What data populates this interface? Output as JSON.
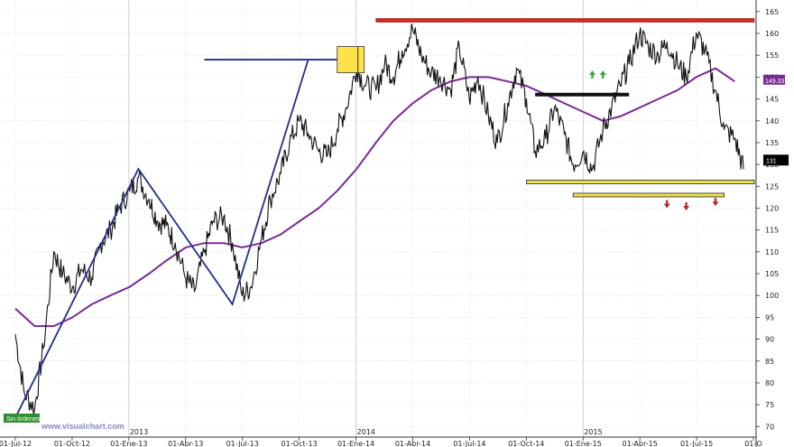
{
  "chart_data": {
    "type": "line",
    "title": "",
    "xlabel": "",
    "ylabel": "",
    "ylim": [
      68,
      166
    ],
    "y_ticks": [
      70,
      75,
      80,
      85,
      90,
      95,
      100,
      105,
      110,
      115,
      120,
      125,
      130,
      135,
      140,
      145,
      150,
      155,
      160,
      165
    ],
    "x_ticks": [
      "01-Jul-12",
      "01-Oct-12",
      "01-Ene-13",
      "01-Abr-13",
      "01-Jul-13",
      "01-Oct-13",
      "01-Ene-14",
      "01-Abr-14",
      "01-Jul-14",
      "01-Oct-14",
      "01-Ene-15",
      "01-Abr-15",
      "01-Jul-15",
      "01-O"
    ],
    "year_labels": [
      "2013",
      "2014",
      "2015"
    ],
    "grid": true,
    "colors": {
      "price": "#111111",
      "moving_average": "#7a2a96",
      "trendlines": "#1f2f8a",
      "resistance": "#d42a1e",
      "support_fill": "#f0e050",
      "signal_up": "#3aa83a",
      "signal_down": "#b03030"
    },
    "series": [
      {
        "role": "price",
        "x": [
          "2012-07-01",
          "2012-07-15",
          "2012-08-01",
          "2012-08-15",
          "2012-09-01",
          "2012-09-15",
          "2012-10-01",
          "2012-10-15",
          "2012-11-01",
          "2012-11-15",
          "2012-12-01",
          "2012-12-15",
          "2013-01-01",
          "2013-01-15",
          "2013-02-01",
          "2013-02-15",
          "2013-03-01",
          "2013-03-15",
          "2013-04-01",
          "2013-04-15",
          "2013-05-01",
          "2013-05-15",
          "2013-06-01",
          "2013-06-15",
          "2013-07-01",
          "2013-07-15",
          "2013-08-01",
          "2013-08-15",
          "2013-09-01",
          "2013-09-15",
          "2013-10-01",
          "2013-10-15",
          "2013-11-01",
          "2013-11-15",
          "2013-12-01",
          "2013-12-15",
          "2014-01-01",
          "2014-01-15",
          "2014-02-01",
          "2014-02-15",
          "2014-03-01",
          "2014-03-15",
          "2014-04-01",
          "2014-04-15",
          "2014-05-01",
          "2014-05-15",
          "2014-06-01",
          "2014-06-15",
          "2014-07-01",
          "2014-07-15",
          "2014-08-01",
          "2014-08-15",
          "2014-09-01",
          "2014-09-15",
          "2014-10-01",
          "2014-10-15",
          "2014-11-01",
          "2014-11-15",
          "2014-12-01",
          "2014-12-15",
          "2015-01-01",
          "2015-01-15",
          "2015-02-01",
          "2015-02-15",
          "2015-03-01",
          "2015-03-15",
          "2015-04-01",
          "2015-04-15",
          "2015-05-01",
          "2015-05-15",
          "2015-06-01",
          "2015-06-15",
          "2015-07-01",
          "2015-07-15",
          "2015-08-01",
          "2015-08-15",
          "2015-09-01",
          "2015-09-15"
        ],
        "values": [
          91,
          78,
          74,
          88,
          110,
          105,
          102,
          106,
          104,
          112,
          115,
          120,
          124,
          127,
          122,
          117,
          116,
          112,
          104,
          101,
          110,
          117,
          118,
          112,
          100,
          102,
          113,
          122,
          128,
          135,
          140,
          137,
          133,
          132,
          138,
          143,
          152,
          148,
          147,
          153,
          150,
          156,
          161,
          155,
          151,
          150,
          147,
          157,
          145,
          150,
          141,
          135,
          144,
          152,
          145,
          133,
          136,
          143,
          137,
          130,
          133,
          129,
          138,
          143,
          148,
          153,
          160,
          157,
          155,
          158,
          153,
          150,
          160,
          156,
          147,
          138,
          136,
          129
        ]
      },
      {
        "role": "moving_average",
        "x": [
          "2012-07-01",
          "2012-08-01",
          "2012-09-01",
          "2012-10-01",
          "2012-11-01",
          "2012-12-01",
          "2013-01-01",
          "2013-02-01",
          "2013-03-01",
          "2013-04-01",
          "2013-05-01",
          "2013-06-01",
          "2013-07-01",
          "2013-08-01",
          "2013-09-01",
          "2013-10-01",
          "2013-11-01",
          "2013-12-01",
          "2014-01-01",
          "2014-02-01",
          "2014-03-01",
          "2014-04-01",
          "2014-05-01",
          "2014-06-01",
          "2014-07-01",
          "2014-08-01",
          "2014-09-01",
          "2014-10-01",
          "2014-11-01",
          "2014-12-01",
          "2015-01-01",
          "2015-02-01",
          "2015-03-01",
          "2015-04-01",
          "2015-05-01",
          "2015-06-01",
          "2015-07-01",
          "2015-08-01",
          "2015-09-01"
        ],
        "values": [
          97,
          93,
          93,
          95,
          98,
          100,
          102,
          105,
          108,
          111,
          112,
          112,
          111,
          112,
          114,
          117,
          120,
          124,
          129,
          135,
          140,
          144,
          147,
          149,
          150,
          150,
          149,
          148,
          146,
          144,
          142,
          140,
          141,
          143,
          145,
          147,
          150,
          152,
          149
        ]
      }
    ],
    "annotations": {
      "resistance_level": 163,
      "support_levels": [
        126,
        123
      ],
      "last_value_label": "131",
      "ma_value_label": "149.33",
      "status_badge": "Sin órdenes",
      "watermark": "www.visualchart.com"
    }
  }
}
